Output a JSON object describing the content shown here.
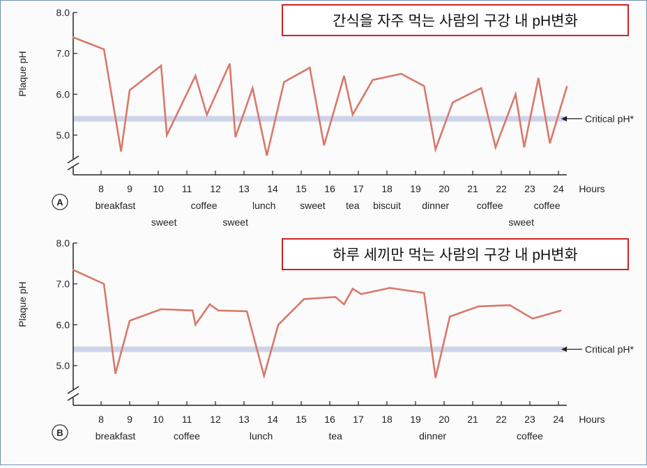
{
  "chart_data": [
    {
      "type": "line",
      "panel_label": "A",
      "title_box": "간식을 자주 먹는 사람의 구강 내 pH변화",
      "ylabel": "Plaque pH",
      "xlabel": "Hours",
      "ylim": [
        4.5,
        8.0
      ],
      "y_ticks": [
        5.0,
        6.0,
        7.0,
        8.0
      ],
      "x_ticks": [
        8,
        9,
        10,
        11,
        12,
        13,
        14,
        15,
        16,
        17,
        18,
        19,
        20,
        21,
        22,
        23,
        24
      ],
      "critical_ph": 5.4,
      "critical_label": "Critical pH*",
      "line_color": "#d9786a",
      "critical_band_color": "#c9cfe6",
      "series": [
        {
          "points": [
            {
              "x": 7.0,
              "y": 7.4
            },
            {
              "x": 8.1,
              "y": 7.1
            },
            {
              "x": 8.7,
              "y": 4.6
            },
            {
              "x": 9.0,
              "y": 6.1
            },
            {
              "x": 10.1,
              "y": 6.7
            },
            {
              "x": 10.3,
              "y": 5.0
            },
            {
              "x": 11.3,
              "y": 6.45
            },
            {
              "x": 11.7,
              "y": 5.5
            },
            {
              "x": 12.5,
              "y": 6.75
            },
            {
              "x": 12.7,
              "y": 4.95
            },
            {
              "x": 13.3,
              "y": 6.15
            },
            {
              "x": 13.8,
              "y": 4.5
            },
            {
              "x": 14.4,
              "y": 6.3
            },
            {
              "x": 15.3,
              "y": 6.65
            },
            {
              "x": 15.8,
              "y": 4.75
            },
            {
              "x": 16.5,
              "y": 6.45
            },
            {
              "x": 16.8,
              "y": 5.5
            },
            {
              "x": 17.5,
              "y": 6.35
            },
            {
              "x": 18.5,
              "y": 6.5
            },
            {
              "x": 19.3,
              "y": 6.2
            },
            {
              "x": 19.7,
              "y": 4.65
            },
            {
              "x": 20.3,
              "y": 5.8
            },
            {
              "x": 21.3,
              "y": 6.15
            },
            {
              "x": 21.8,
              "y": 4.7
            },
            {
              "x": 22.5,
              "y": 6.0
            },
            {
              "x": 22.8,
              "y": 4.7
            },
            {
              "x": 23.3,
              "y": 6.4
            },
            {
              "x": 23.7,
              "y": 4.8
            },
            {
              "x": 24.3,
              "y": 6.2
            }
          ]
        }
      ],
      "events": [
        {
          "label": "breakfast",
          "x": 8.5,
          "row": 1
        },
        {
          "label": "sweet",
          "x": 10.2,
          "row": 2
        },
        {
          "label": "coffee",
          "x": 11.6,
          "row": 1
        },
        {
          "label": "sweet",
          "x": 12.7,
          "row": 2
        },
        {
          "label": "lunch",
          "x": 13.7,
          "row": 1
        },
        {
          "label": "sweet",
          "x": 15.4,
          "row": 1
        },
        {
          "label": "tea",
          "x": 16.8,
          "row": 1
        },
        {
          "label": "biscuit",
          "x": 18.0,
          "row": 1
        },
        {
          "label": "dinner",
          "x": 19.7,
          "row": 1
        },
        {
          "label": "coffee",
          "x": 21.6,
          "row": 1
        },
        {
          "label": "sweet",
          "x": 22.7,
          "row": 2
        },
        {
          "label": "coffee",
          "x": 23.6,
          "row": 1
        }
      ]
    },
    {
      "type": "line",
      "panel_label": "B",
      "title_box": "하루 세끼만 먹는 사람의 구강 내 pH변화",
      "ylabel": "Plaque pH",
      "xlabel": "Hours",
      "ylim": [
        4.5,
        8.0
      ],
      "y_ticks": [
        5.0,
        6.0,
        7.0,
        8.0
      ],
      "x_ticks": [
        8,
        9,
        10,
        11,
        12,
        13,
        14,
        15,
        16,
        17,
        18,
        19,
        20,
        21,
        22,
        23,
        24
      ],
      "critical_ph": 5.4,
      "critical_label": "Critical pH*",
      "line_color": "#d9786a",
      "critical_band_color": "#c9cfe6",
      "series": [
        {
          "points": [
            {
              "x": 7.0,
              "y": 7.35
            },
            {
              "x": 8.1,
              "y": 7.0
            },
            {
              "x": 8.5,
              "y": 4.8
            },
            {
              "x": 9.0,
              "y": 6.1
            },
            {
              "x": 10.1,
              "y": 6.38
            },
            {
              "x": 11.2,
              "y": 6.35
            },
            {
              "x": 11.3,
              "y": 6.0
            },
            {
              "x": 11.8,
              "y": 6.5
            },
            {
              "x": 12.1,
              "y": 6.35
            },
            {
              "x": 13.1,
              "y": 6.33
            },
            {
              "x": 13.7,
              "y": 4.75
            },
            {
              "x": 14.2,
              "y": 6.0
            },
            {
              "x": 15.1,
              "y": 6.63
            },
            {
              "x": 16.2,
              "y": 6.68
            },
            {
              "x": 16.5,
              "y": 6.5
            },
            {
              "x": 16.8,
              "y": 6.88
            },
            {
              "x": 17.1,
              "y": 6.75
            },
            {
              "x": 18.1,
              "y": 6.9
            },
            {
              "x": 19.3,
              "y": 6.78
            },
            {
              "x": 19.7,
              "y": 4.7
            },
            {
              "x": 20.2,
              "y": 6.2
            },
            {
              "x": 21.2,
              "y": 6.45
            },
            {
              "x": 22.3,
              "y": 6.48
            },
            {
              "x": 23.1,
              "y": 6.15
            },
            {
              "x": 24.1,
              "y": 6.35
            }
          ]
        }
      ],
      "events": [
        {
          "label": "breakfast",
          "x": 8.5,
          "row": 1
        },
        {
          "label": "coffee",
          "x": 11.0,
          "row": 1
        },
        {
          "label": "lunch",
          "x": 13.6,
          "row": 1
        },
        {
          "label": "tea",
          "x": 16.2,
          "row": 1
        },
        {
          "label": "dinner",
          "x": 19.6,
          "row": 1
        },
        {
          "label": "coffee",
          "x": 23.0,
          "row": 1
        }
      ]
    }
  ]
}
